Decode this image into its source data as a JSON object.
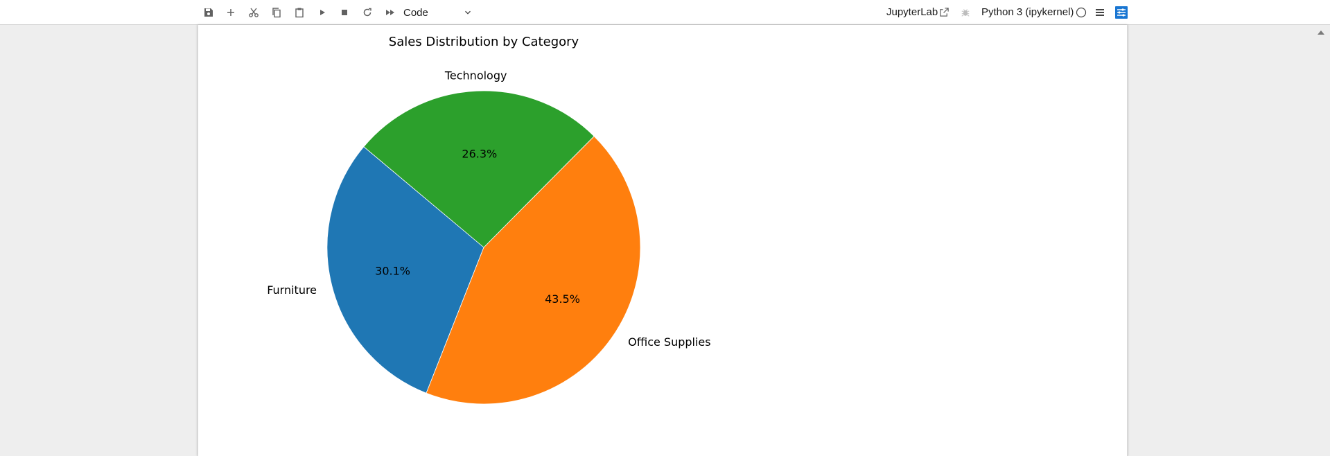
{
  "toolbar": {
    "buttons": [
      {
        "name": "save-button",
        "icon": "save-icon"
      },
      {
        "name": "insert-cell-button",
        "icon": "plus-icon"
      },
      {
        "name": "cut-button",
        "icon": "scissors-icon"
      },
      {
        "name": "copy-button",
        "icon": "copy-icon"
      },
      {
        "name": "paste-button",
        "icon": "clipboard-icon"
      },
      {
        "name": "run-button",
        "icon": "play-icon"
      },
      {
        "name": "interrupt-button",
        "icon": "stop-icon"
      },
      {
        "name": "restart-button",
        "icon": "refresh-icon"
      },
      {
        "name": "restart-run-all-button",
        "icon": "fast-forward-icon"
      }
    ],
    "cell_type": "Code",
    "jupyterlab_link": "JupyterLab",
    "kernel_name": "Python 3 (ipykernel)",
    "accent_color": "#1976d2"
  },
  "chart_data": {
    "type": "pie",
    "title": "Sales Distribution by Category",
    "slices": [
      {
        "label": "Furniture",
        "percent": 30.1,
        "pct_label": "30.1%",
        "color": "#1f77b4"
      },
      {
        "label": "Office Supplies",
        "percent": 43.5,
        "pct_label": "43.5%",
        "color": "#ff7f0e"
      },
      {
        "label": "Technology",
        "percent": 26.3,
        "pct_label": "26.3%",
        "color": "#2ca02c"
      }
    ],
    "start_angle_deg": 140,
    "direction": "counterclockwise",
    "legend": "none"
  }
}
